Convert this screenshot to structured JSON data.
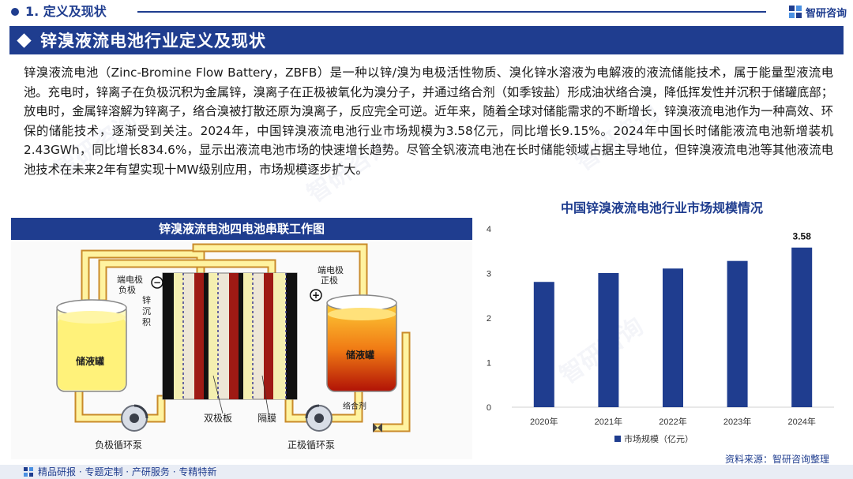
{
  "header": {
    "section": "1. 定义及现状",
    "brand": "智研咨询"
  },
  "title": "锌溴液流电池行业定义及现状",
  "paragraph": "锌溴液流电池（Zinc-Bromine Flow Battery，ZBFB）是一种以锌/溴为电极活性物质、溴化锌水溶液为电解液的液流储能技术，属于能量型液流电池。充电时，锌离子在负极沉积为金属锌，溴离子在正极被氧化为溴分子，并通过络合剂（如季铵盐）形成油状络合溴，降低挥发性并沉积于储罐底部；放电时，金属锌溶解为锌离子，络合溴被打散还原为溴离子，反应完全可逆。近年来，随着全球对储能需求的不断增长，锌溴液流电池作为一种高效、环保的储能技术，逐渐受到关注。2024年，中国锌溴液流电池行业市场规模为3.58亿元，同比增长9.15%。2024年中国长时储能液流电池新增装机2.43GWh，同比增长834.6%，显示出液流电池市场的快速增长趋势。尽管全钒液流电池在长时储能领域占据主导地位，但锌溴液流电池等其他液流电池技术在未来2年有望实现十MW级别应用，市场规模逐步扩大。",
  "diagram": {
    "title": "锌溴液流电池四电池串联工作图",
    "labels": {
      "neg_terminal_1": "端电极",
      "neg_terminal_2": "负极",
      "zinc_1": "锌",
      "zinc_2": "沉",
      "zinc_3": "积",
      "pos_terminal_1": "端电极",
      "pos_terminal_2": "正极",
      "tank_left": "储液罐",
      "tank_right": "储液罐",
      "complexing": "络合剂",
      "bipolar": "双极板",
      "membrane": "隔膜",
      "pump_neg": "负极循环泵",
      "pump_pos": "正极循环泵",
      "minus": "−",
      "plus": "+"
    }
  },
  "chart_data": {
    "type": "bar",
    "title": "中国锌溴液流电池行业市场规模情况",
    "categories": [
      "2020年",
      "2021年",
      "2022年",
      "2023年",
      "2024年"
    ],
    "series": [
      {
        "name": "市场规模（亿元）",
        "values": [
          2.81,
          3.01,
          3.11,
          3.28,
          3.58
        ],
        "color": "#1f3d8f"
      }
    ],
    "data_labels": {
      "2024年": "3.58"
    },
    "ylim": [
      0,
      4
    ],
    "yticks": [
      0,
      1,
      2,
      3,
      4
    ],
    "grid": false,
    "legend": "bottom"
  },
  "source": "资料来源：智研咨询整理",
  "footer": "精品研报 · 专题定制 · 产研服务 · 专精特新",
  "colors": {
    "brand": "#1f3d8f",
    "bar": "#1f3d8f"
  },
  "watermark": "智研咨询"
}
